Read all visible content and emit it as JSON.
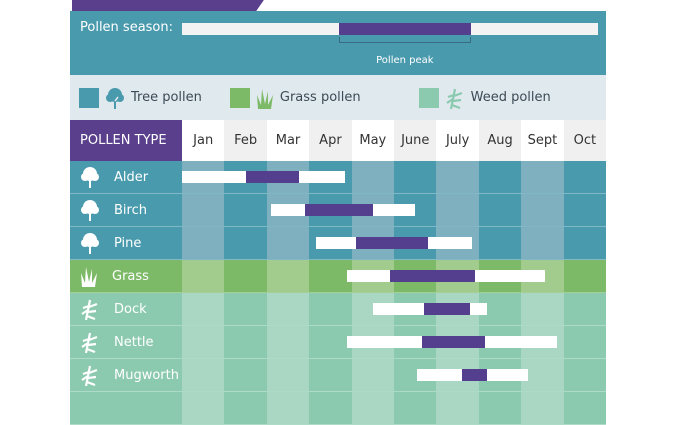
{
  "header": {
    "season_label": "Pollen season:",
    "peak_label": "Pollen peak",
    "pollen_type_label": "POLLEN TYPE"
  },
  "legend": [
    {
      "label": "Tree pollen",
      "color": "#4a9aad",
      "icon": "tree-icon"
    },
    {
      "label": "Grass pollen",
      "color": "#7dba68",
      "icon": "grass-icon"
    },
    {
      "label": "Weed pollen",
      "color": "#8ccab0",
      "icon": "weed-icon"
    }
  ],
  "colors": {
    "peak": "#533f8e",
    "season": "#ffffff",
    "tree": "#4a9aad",
    "tree_alt": "#7fb0c0",
    "grass": "#7dba68",
    "grass_alt": "#a2cc8e",
    "weed": "#8ccab0",
    "weed_alt": "#a9d7c4"
  },
  "chart_data": {
    "type": "gantt",
    "categories": [
      "Jan",
      "Feb",
      "Mar",
      "Apr",
      "May",
      "June",
      "July",
      "Aug",
      "Sept",
      "Oct"
    ],
    "unit": "months from start of Jan",
    "season_legend": {
      "season": [
        0,
        9.8
      ],
      "peak": [
        3.7,
        6.8
      ]
    },
    "series": [
      {
        "name": "Alder",
        "group": "tree",
        "season": [
          0.0,
          3.85
        ],
        "peak": [
          1.5,
          2.75
        ]
      },
      {
        "name": "Birch",
        "group": "tree",
        "season": [
          2.1,
          5.5
        ],
        "peak": [
          2.9,
          4.5
        ]
      },
      {
        "name": "Pine",
        "group": "tree",
        "season": [
          3.15,
          6.85
        ],
        "peak": [
          4.1,
          5.8
        ]
      },
      {
        "name": "Grass",
        "group": "grass",
        "season": [
          3.9,
          8.55
        ],
        "peak": [
          4.9,
          6.9
        ]
      },
      {
        "name": "Dock",
        "group": "weed",
        "season": [
          4.5,
          7.2
        ],
        "peak": [
          5.7,
          6.8
        ]
      },
      {
        "name": "Nettle",
        "group": "weed",
        "season": [
          3.9,
          8.85
        ],
        "peak": [
          5.65,
          7.15
        ]
      },
      {
        "name": "Mugworth",
        "group": "weed",
        "season": [
          5.55,
          8.15
        ],
        "peak": [
          6.6,
          7.2
        ]
      }
    ]
  }
}
